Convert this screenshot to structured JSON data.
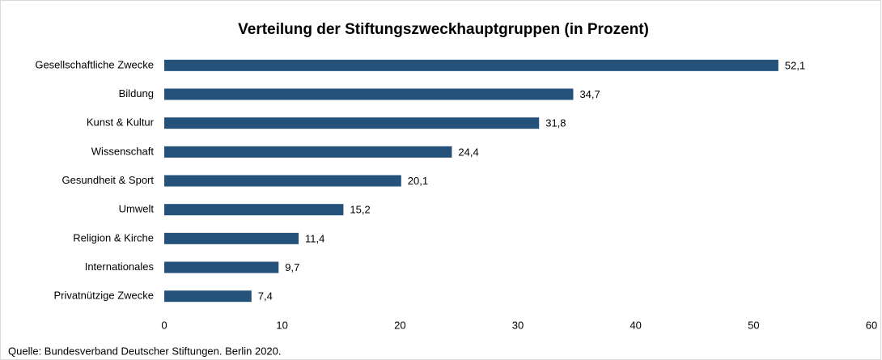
{
  "chart_data": {
    "type": "bar",
    "orientation": "horizontal",
    "title": "Verteilung der Stiftungszweckhauptgruppen (in Prozent)",
    "categories": [
      "Gesellschaftliche Zwecke",
      "Bildung",
      "Kunst & Kultur",
      "Wissenschaft",
      "Gesundheit & Sport",
      "Umwelt",
      "Religion & Kirche",
      "Internationales",
      "Privatnützige Zwecke"
    ],
    "values": [
      52.1,
      34.7,
      31.8,
      24.4,
      20.1,
      15.2,
      11.4,
      9.7,
      7.4
    ],
    "value_labels": [
      "52,1",
      "34,7",
      "31,8",
      "24,4",
      "20,1",
      "15,2",
      "11,4",
      "9,7",
      "7,4"
    ],
    "color": "#24527a",
    "xlim": [
      0,
      60
    ],
    "xticks": [
      0,
      10,
      20,
      30,
      40,
      50,
      60
    ],
    "grid": false,
    "note": "Quelle: Bundesverband  Deutscher Stiftungen. Berlin 2020."
  }
}
